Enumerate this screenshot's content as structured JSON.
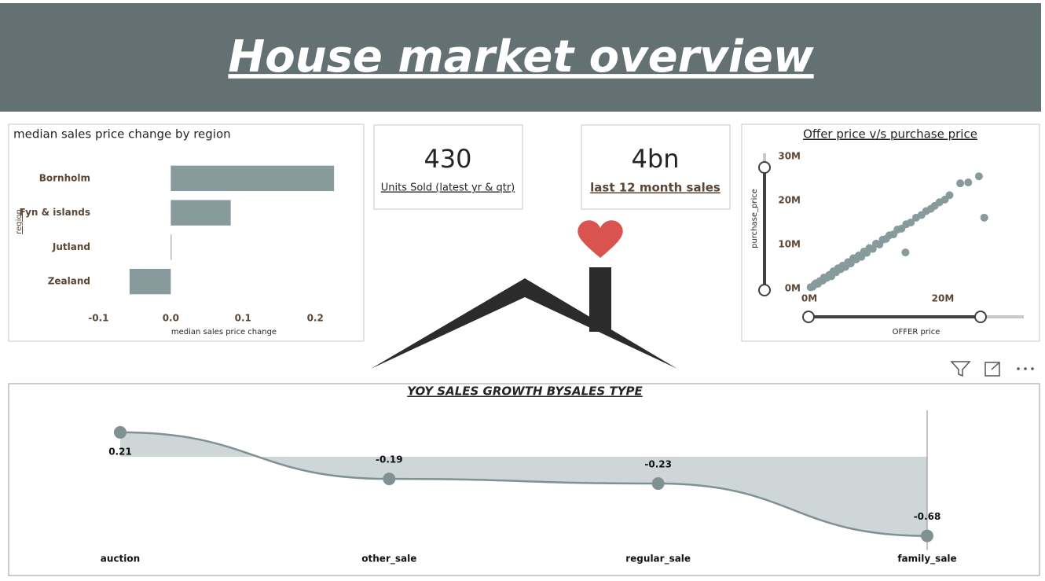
{
  "header": {
    "title": "House market overview"
  },
  "cards": [
    {
      "value": 430,
      "label": "Units Sold (latest yr & qtr)"
    },
    {
      "value": "4bn",
      "label": "last 12 month sales"
    }
  ],
  "chart_data": [
    {
      "type": "bar",
      "orientation": "horizontal",
      "title": "median sales price change by region",
      "categories": [
        "Bornholm",
        "Fyn & islands",
        "Jutland",
        "Zealand"
      ],
      "values": [
        0.226,
        0.083,
        0.001,
        -0.057
      ],
      "color": "#879a9c",
      "xlabel": "median sales price change",
      "ylabel": "region",
      "xlim": [
        -0.12,
        0.24
      ],
      "xticks": [
        -0.1,
        {
          "value": 0,
          "label": "0.0"
        },
        0.1,
        0.2
      ]
    },
    {
      "type": "scatter",
      "title": "Offer price v/s purchase price",
      "xlabel": "OFFER price",
      "ylabel": "purchase_price",
      "color": "#879a9c",
      "x": [
        0.2,
        0.5,
        0.8,
        1,
        1.3,
        1.6,
        2,
        2.2,
        2.6,
        3,
        3.3,
        3.6,
        4,
        4.3,
        4.7,
        5,
        5.4,
        5.8,
        6.2,
        6.6,
        7,
        7.4,
        7.8,
        8.2,
        8.6,
        9,
        9.5,
        10,
        10.5,
        11,
        11.5,
        12,
        12.6,
        13.2,
        13.8,
        14.4,
        14.5,
        15.2,
        16,
        16.8,
        17.5,
        18.2,
        18.8,
        19.5,
        20.3,
        21,
        22.6,
        23.8,
        25.4,
        26.2
      ],
      "values": [
        0.3,
        0.4,
        0.9,
        1.2,
        1.1,
        1.7,
        1.8,
        2.5,
        2.4,
        3.1,
        2.8,
        3.9,
        3.7,
        4.6,
        4.4,
        5.2,
        4.9,
        6,
        5.7,
        6.9,
        6.6,
        7.5,
        7.2,
        8.4,
        8.1,
        9.2,
        9,
        10.2,
        10,
        11.1,
        11.3,
        12.1,
        12.3,
        13.4,
        13.6,
        8.2,
        14.6,
        15,
        16.1,
        16.7,
        17.6,
        18.1,
        18.8,
        19.6,
        20.2,
        21.2,
        23.9,
        24.1,
        25.5,
        16.1
      ],
      "xlim": [
        -1,
        31
      ],
      "ylim": [
        -1,
        31
      ],
      "xticks": [
        {
          "value": 0,
          "label": "0M"
        },
        {
          "value": 20,
          "label": "20M"
        }
      ],
      "yticks": [
        {
          "value": 0,
          "label": "0M"
        },
        {
          "value": 10,
          "label": "10M"
        },
        {
          "value": 20,
          "label": "20M"
        },
        {
          "value": 30,
          "label": "30M"
        }
      ]
    },
    {
      "type": "area",
      "title": "YOY SALES GROWTH BYSALES TYPE",
      "categories": [
        "auction",
        "other_sale",
        "regular_sale",
        "family_sale"
      ],
      "values": [
        0.21,
        -0.19,
        -0.23,
        -0.68
      ],
      "color": "#7f9193",
      "fill": "#cfd6d7",
      "ylim": [
        -0.8,
        0.4
      ]
    }
  ]
}
